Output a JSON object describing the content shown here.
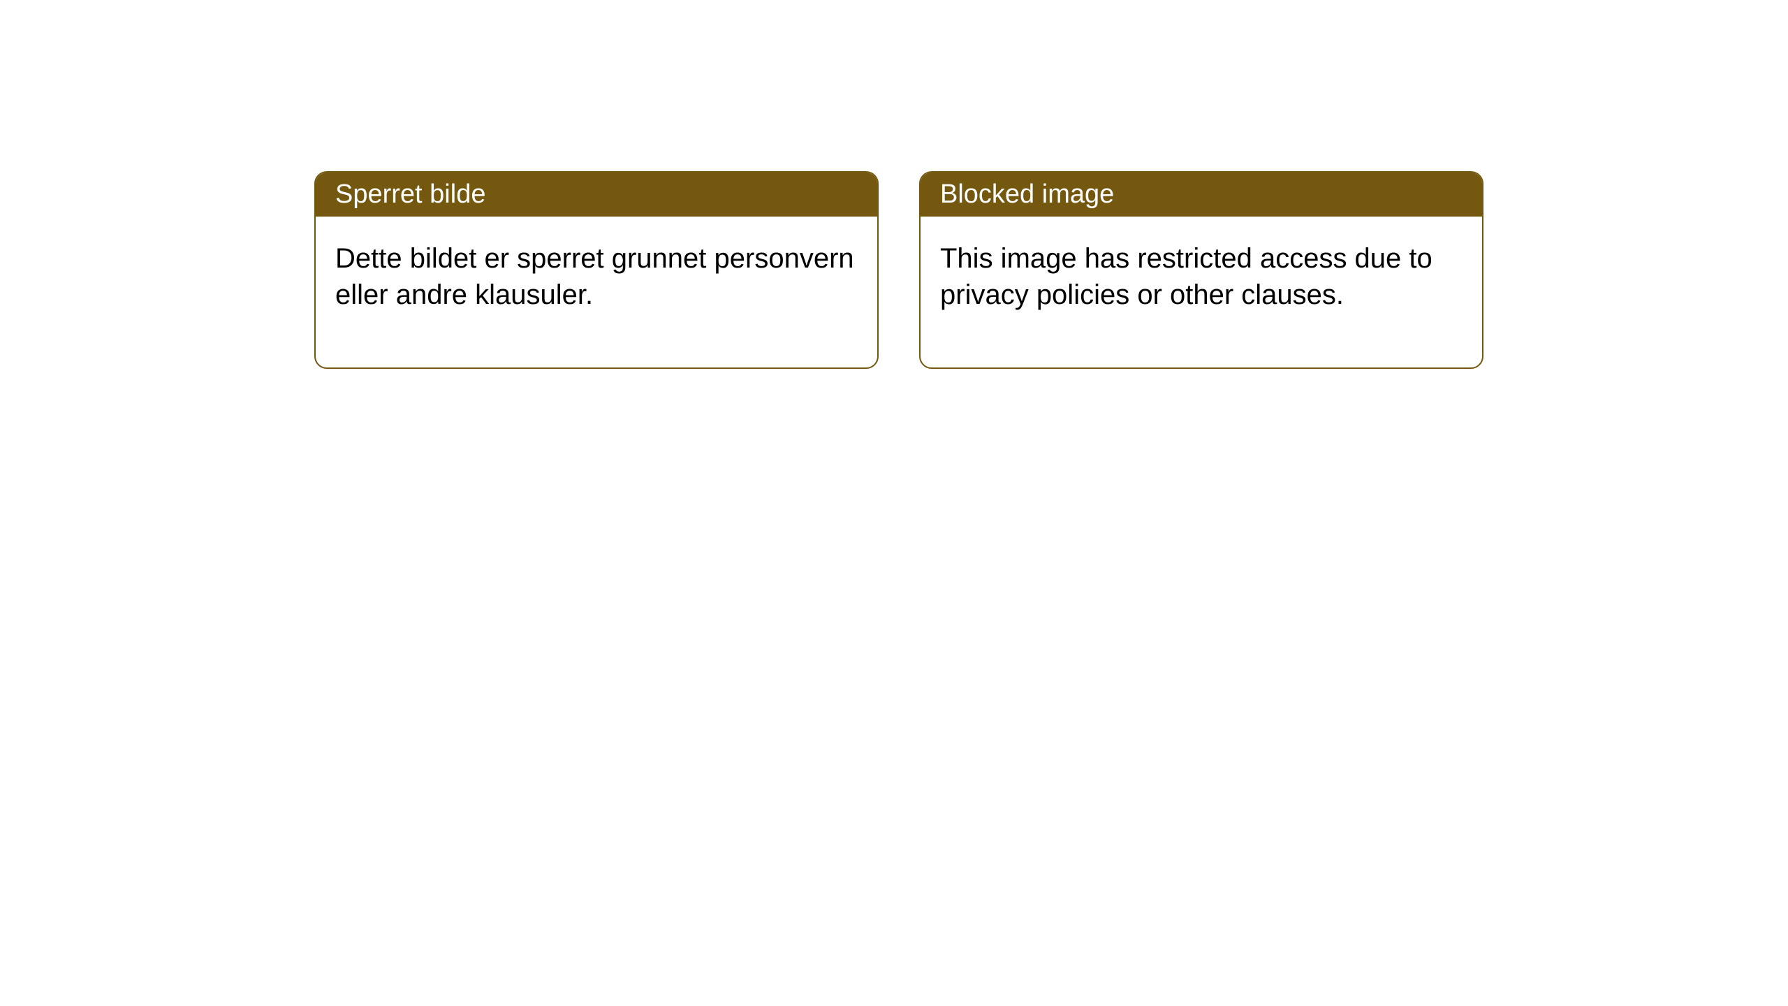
{
  "layout": {
    "background_color": "#ffffff",
    "card_border_color": "#745810",
    "card_header_bg": "#745810",
    "card_header_text_color": "#ffffff",
    "card_body_text_color": "#000000",
    "card_border_radius": 18,
    "header_fontsize": 38,
    "body_fontsize": 40
  },
  "cards": [
    {
      "title": "Sperret bilde",
      "body": "Dette bildet er sperret grunnet personvern eller andre klausuler."
    },
    {
      "title": "Blocked image",
      "body": "This image has restricted access due to privacy policies or other clauses."
    }
  ]
}
